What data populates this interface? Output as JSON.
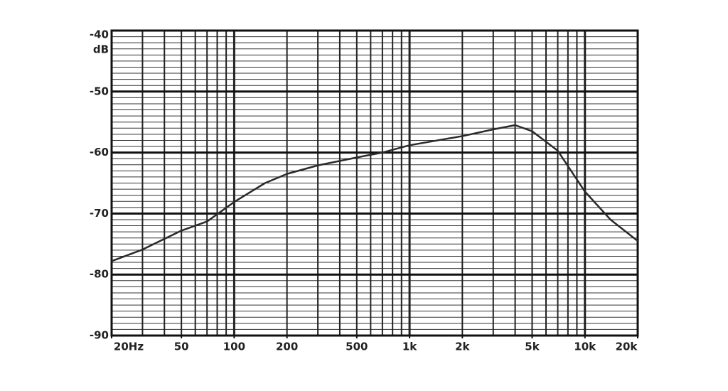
{
  "chart_data": {
    "type": "line",
    "y_label": "dB",
    "x": [
      20,
      30,
      50,
      70,
      100,
      150,
      200,
      300,
      500,
      700,
      1000,
      2000,
      3000,
      4000,
      5000,
      7000,
      10000,
      14000,
      20000
    ],
    "series": [
      {
        "color": "#2a2a2a",
        "values": [
          -77.8,
          -75.9,
          -72.8,
          -71.3,
          -68.1,
          -65,
          -63.5,
          -62.1,
          -60.8,
          -60,
          -58.8,
          -57.3,
          -56.2,
          -55.5,
          -56.5,
          -59.7,
          -66.4,
          -71,
          -74.5
        ]
      }
    ],
    "xlim": [
      20,
      20000
    ],
    "ylim": [
      -90,
      -40
    ],
    "log_x": true,
    "xticks": [
      {
        "value": 20,
        "label": "20Hz"
      },
      50,
      100,
      200,
      500,
      {
        "value": 1000,
        "label": "1k"
      },
      {
        "value": 2000,
        "label": "2k"
      },
      {
        "value": 5000,
        "label": "5k"
      },
      {
        "value": 10000,
        "label": "10k"
      },
      {
        "value": 20000,
        "label": "20k"
      }
    ],
    "yticks": [
      -40,
      -50,
      -60,
      -70,
      -80,
      -90
    ],
    "grid": true
  }
}
